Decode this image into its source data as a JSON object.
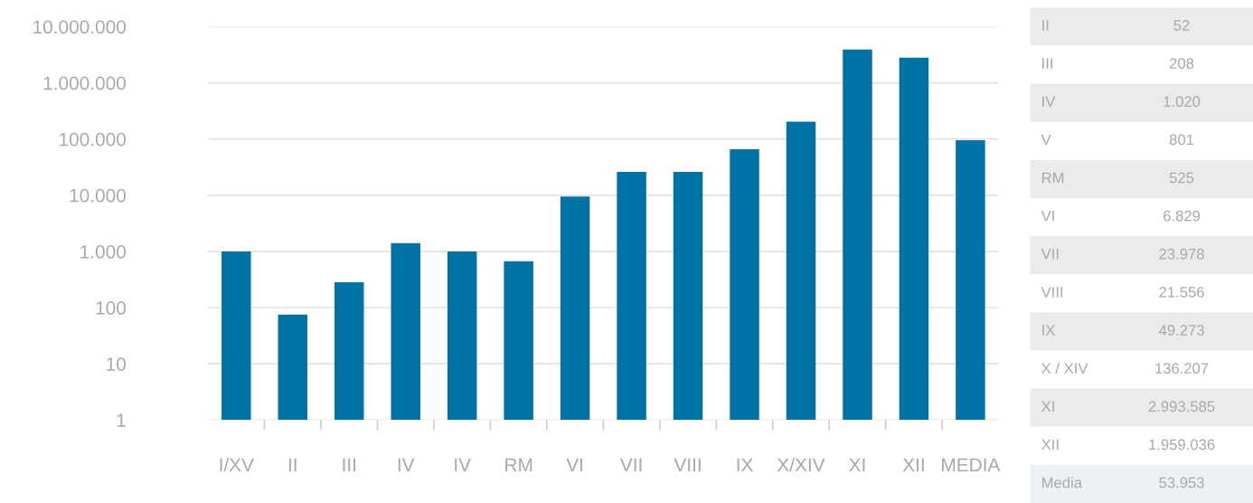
{
  "chart_data": [
    {
      "type": "bar",
      "categories": [
        "I/XV",
        "II",
        "III",
        "IV",
        "IV",
        "RM",
        "VI",
        "VII",
        "VIII",
        "IX",
        "X/XIV",
        "XI",
        "XII",
        "MEDIA"
      ],
      "values": [
        1000,
        75,
        284,
        1410,
        1000,
        670,
        9500,
        26000,
        26000,
        66000,
        204000,
        3900000,
        2800000,
        95000
      ],
      "color": "#0072a3",
      "log": "y",
      "ylim": [
        1,
        10000000
      ],
      "yticks": [
        1,
        10,
        100,
        {
          "value": 1000,
          "label": "1.000"
        },
        {
          "value": 10000,
          "label": "10.000"
        },
        {
          "value": 100000,
          "label": "100.000"
        },
        {
          "value": 1000000,
          "label": "1.000.000"
        },
        {
          "value": 10000000,
          "label": "10.000.000"
        }
      ],
      "grid": "y",
      "legend": false
    },
    {
      "type": "other",
      "annotations": [
        "II",
        "52",
        "III",
        "208",
        "IV",
        "1.020",
        "V",
        "801",
        "RM",
        "525",
        "VI",
        "6.829",
        "VII",
        "23.978",
        "VIII",
        "21.556",
        "IX",
        "49.273",
        "X / XIV",
        "136.207",
        "XI",
        "2.993.585",
        "XII",
        "1.959.036",
        "Media",
        "53.953"
      ]
    }
  ]
}
